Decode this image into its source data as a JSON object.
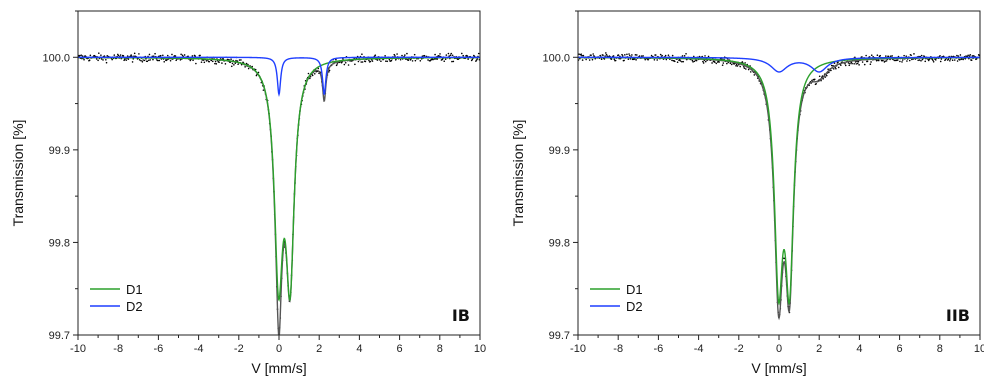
{
  "chart_data": [
    {
      "type": "line",
      "panel_label": "IB",
      "xlabel": "V [mm/s]",
      "ylabel": "Transmission [%]",
      "xlim": [
        -10,
        10
      ],
      "ylim": [
        99.7,
        100.05
      ],
      "x_ticks": [
        "-10",
        "-8",
        "-6",
        "-4",
        "-2",
        "0",
        "2",
        "4",
        "6",
        "8",
        "10"
      ],
      "y_ticks": [
        "99.7",
        "99.8",
        "99.9",
        "100.0"
      ],
      "legend_position": "bottom-left",
      "series": [
        {
          "name": "D1",
          "color": "#2ca02c",
          "components": [
            {
              "center": -0.02,
              "depth": 0.225,
              "hwhm": 0.25
            },
            {
              "center": 0.55,
              "depth": 0.225,
              "hwhm": 0.25
            }
          ]
        },
        {
          "name": "D2",
          "color": "#1f3fff",
          "components": [
            {
              "center": 0.0,
              "depth": 0.04,
              "hwhm": 0.1
            },
            {
              "center": 2.25,
              "depth": 0.04,
              "hwhm": 0.1
            }
          ]
        }
      ],
      "total_fit_color": "#555555",
      "data_points_color": "#000000"
    },
    {
      "type": "line",
      "panel_label": "IIB",
      "xlabel": "V [mm/s]",
      "ylabel": "Transmission [%]",
      "xlim": [
        -10,
        10
      ],
      "ylim": [
        99.7,
        100.05
      ],
      "x_ticks": [
        "-10",
        "-8",
        "-6",
        "-4",
        "-2",
        "0",
        "2",
        "4",
        "6",
        "8",
        "10"
      ],
      "y_ticks": [
        "99.7",
        "99.8",
        "99.9",
        "100.0"
      ],
      "legend_position": "bottom-left",
      "series": [
        {
          "name": "D1",
          "color": "#2ca02c",
          "components": [
            {
              "center": -0.02,
              "depth": 0.225,
              "hwhm": 0.25
            },
            {
              "center": 0.52,
              "depth": 0.225,
              "hwhm": 0.25
            }
          ]
        },
        {
          "name": "D2",
          "color": "#1f3fff",
          "components": [
            {
              "center": 0.0,
              "depth": 0.015,
              "hwhm": 0.5
            },
            {
              "center": 2.0,
              "depth": 0.015,
              "hwhm": 0.5
            }
          ]
        }
      ],
      "total_fit_color": "#555555",
      "data_points_color": "#000000"
    }
  ]
}
